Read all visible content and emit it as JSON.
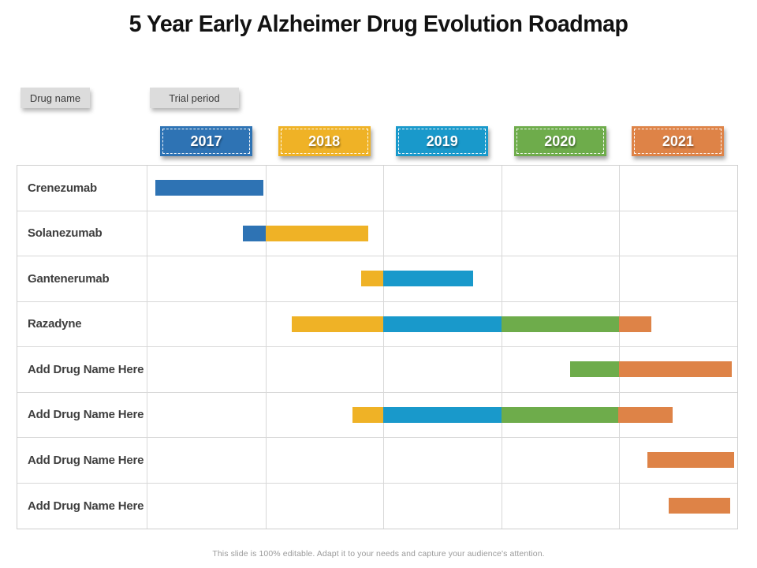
{
  "title": "5 Year Early Alzheimer Drug Evolution Roadmap",
  "legend": {
    "drug_name_label": "Drug name",
    "trial_period_label": "Trial period"
  },
  "colors": {
    "blue": "#2E73B4",
    "yellow": "#EFB226",
    "cyan": "#1999CB",
    "green": "#6EAC4B",
    "orange": "#DE8347"
  },
  "chart_data": {
    "type": "bar",
    "subtype": "gantt-timeline",
    "title": "5 Year Early Alzheimer Drug Evolution Roadmap",
    "x_range": [
      2017,
      2022
    ],
    "years": [
      "2017",
      "2018",
      "2019",
      "2020",
      "2021"
    ],
    "year_colors": {
      "2017": "blue",
      "2018": "yellow",
      "2019": "cyan",
      "2020": "green",
      "2021": "orange"
    },
    "grid": true,
    "rows": [
      {
        "label": "Crenezumab",
        "segments": [
          {
            "color": "blue",
            "start": 2017.07,
            "end": 2017.98
          }
        ]
      },
      {
        "label": "Solanezumab",
        "segments": [
          {
            "color": "blue",
            "start": 2017.81,
            "end": 2018.0
          },
          {
            "color": "yellow",
            "start": 2018.0,
            "end": 2018.87
          }
        ]
      },
      {
        "label": "Gantenerumab",
        "segments": [
          {
            "color": "yellow",
            "start": 2018.81,
            "end": 2019.0
          },
          {
            "color": "cyan",
            "start": 2019.0,
            "end": 2019.76
          }
        ]
      },
      {
        "label": "Razadyne",
        "segments": [
          {
            "color": "yellow",
            "start": 2018.22,
            "end": 2019.0
          },
          {
            "color": "cyan",
            "start": 2019.0,
            "end": 2020.0
          },
          {
            "color": "green",
            "start": 2020.0,
            "end": 2021.0
          },
          {
            "color": "orange",
            "start": 2021.0,
            "end": 2021.27
          }
        ]
      },
      {
        "label": "Add Drug Name Here",
        "segments": [
          {
            "color": "green",
            "start": 2020.58,
            "end": 2021.0
          },
          {
            "color": "orange",
            "start": 2021.0,
            "end": 2021.95
          }
        ]
      },
      {
        "label": "Add Drug Name Here",
        "segments": [
          {
            "color": "yellow",
            "start": 2018.74,
            "end": 2019.0
          },
          {
            "color": "cyan",
            "start": 2019.0,
            "end": 2020.0
          },
          {
            "color": "green",
            "start": 2020.0,
            "end": 2020.99
          },
          {
            "color": "orange",
            "start": 2020.99,
            "end": 2021.45
          }
        ]
      },
      {
        "label": "Add Drug Name Here",
        "segments": [
          {
            "color": "orange",
            "start": 2021.24,
            "end": 2021.97
          }
        ]
      },
      {
        "label": "Add Drug Name Here",
        "segments": [
          {
            "color": "orange",
            "start": 2021.42,
            "end": 2021.94
          }
        ]
      }
    ]
  },
  "footer": "This slide is 100% editable. Adapt it to your needs and capture your audience's attention."
}
